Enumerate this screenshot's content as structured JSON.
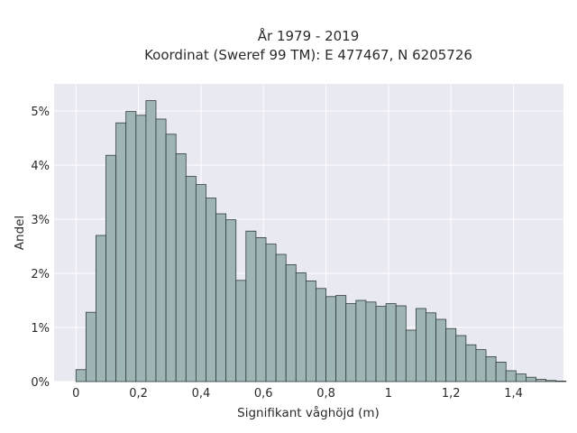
{
  "chart_data": {
    "type": "bar",
    "title_line1": "År 1979 - 2019",
    "title_line2": "Koordinat (Sweref 99 TM): E 477467, N 6205726",
    "xlabel": "Signifikant våghöjd (m)",
    "ylabel": "Andel",
    "xlim": [
      -0.07,
      1.56
    ],
    "ylim": [
      0,
      5.5
    ],
    "xticks": [
      0,
      0.2,
      0.4,
      0.6,
      0.8,
      1.0,
      1.2,
      1.4
    ],
    "xtick_labels": [
      "0",
      "0,2",
      "0,4",
      "0,6",
      "0,8",
      "1",
      "1,2",
      "1,4"
    ],
    "yticks": [
      0,
      1,
      2,
      3,
      4,
      5
    ],
    "ytick_labels": [
      "0%",
      "1%",
      "2%",
      "3%",
      "4%",
      "5%"
    ],
    "bin_width": 0.032,
    "bin_start": 0.0,
    "values": [
      0.22,
      1.28,
      2.7,
      4.18,
      4.78,
      4.99,
      4.92,
      5.19,
      4.85,
      4.57,
      4.21,
      3.79,
      3.64,
      3.39,
      3.1,
      2.99,
      1.87,
      2.78,
      2.66,
      2.54,
      2.35,
      2.16,
      2.01,
      1.86,
      1.72,
      1.57,
      1.59,
      1.44,
      1.5,
      1.47,
      1.39,
      1.44,
      1.4,
      0.95,
      1.35,
      1.27,
      1.15,
      0.98,
      0.85,
      0.68,
      0.59,
      0.46,
      0.36,
      0.2,
      0.14,
      0.08,
      0.04,
      0.02,
      0.01
    ],
    "grid": true,
    "bar_color": "#9fb5b5",
    "bar_edge_color": "#2f3b3b",
    "plot_bg": "#e9e9f2"
  }
}
